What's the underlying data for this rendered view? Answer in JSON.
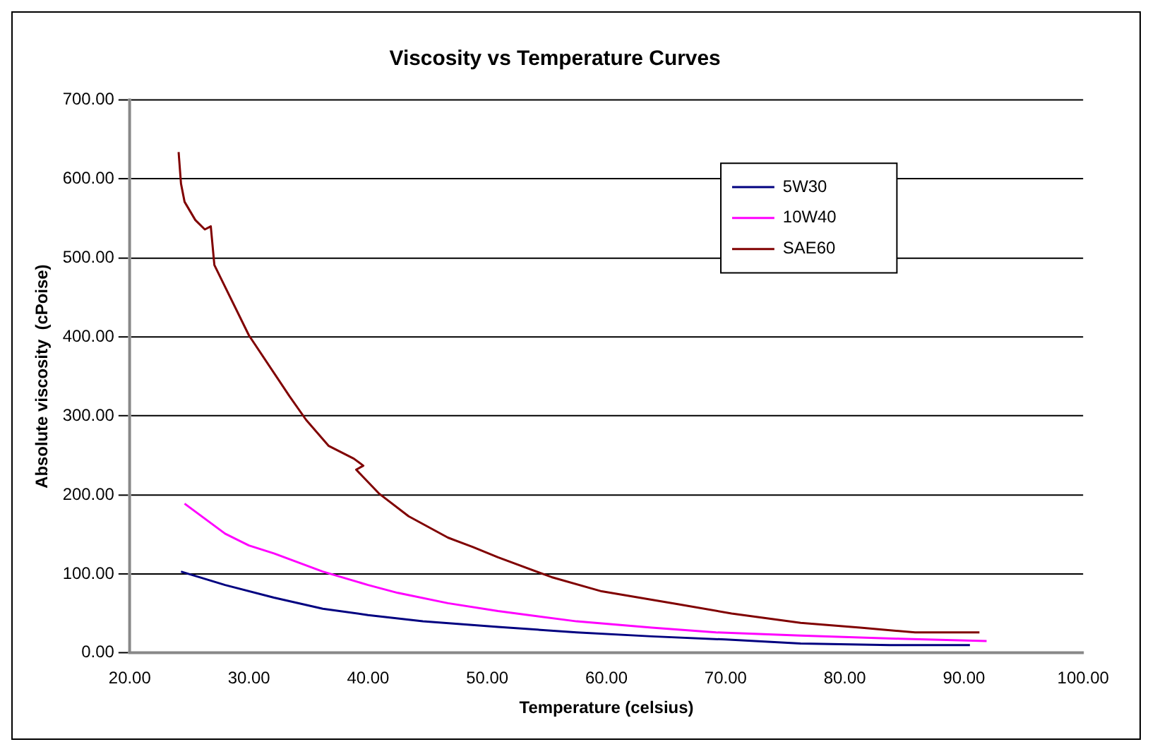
{
  "chart_data": {
    "type": "line",
    "title": "Viscosity vs Temperature Curves",
    "xlabel": "Temperature (celsius)",
    "ylabel": "Absolute viscosity  (cPoise)",
    "xlim": [
      20,
      100
    ],
    "ylim": [
      0,
      700
    ],
    "xticks": [
      {
        "value": 20,
        "label": "20.00"
      },
      {
        "value": 30,
        "label": "30.00"
      },
      {
        "value": 40,
        "label": "40.00"
      },
      {
        "value": 50,
        "label": "50.00"
      },
      {
        "value": 60,
        "label": "60.00"
      },
      {
        "value": 70,
        "label": "70.00"
      },
      {
        "value": 80,
        "label": "80.00"
      },
      {
        "value": 90,
        "label": "90.00"
      },
      {
        "value": 100,
        "label": "100.00"
      }
    ],
    "yticks": [
      {
        "value": 0,
        "label": "0.00"
      },
      {
        "value": 100,
        "label": "100.00"
      },
      {
        "value": 200,
        "label": "200.00"
      },
      {
        "value": 300,
        "label": "300.00"
      },
      {
        "value": 400,
        "label": "400.00"
      },
      {
        "value": 500,
        "label": "500.00"
      },
      {
        "value": 600,
        "label": "600.00"
      },
      {
        "value": 700,
        "label": "700.00"
      }
    ],
    "grid": "y",
    "legend": "top right",
    "marker": "none",
    "line_style": "solid",
    "series": [
      {
        "name": "5W30",
        "color": "#000080",
        "x": [
          24.3,
          28.0,
          32.1,
          36.2,
          40.0,
          44.6,
          50.9,
          57.5,
          63.8,
          70.0,
          76.3,
          83.8,
          90.5
        ],
        "values": [
          103,
          86,
          70,
          56,
          48,
          40,
          33,
          26,
          21,
          17,
          12,
          10,
          10
        ]
      },
      {
        "name": "10W40",
        "color": "#ff00ff",
        "x": [
          24.6,
          28.0,
          30.0,
          32.1,
          36.2,
          40.0,
          42.5,
          46.7,
          50.9,
          57.5,
          63.8,
          69.2,
          76.3,
          84.6,
          91.9
        ],
        "values": [
          189,
          151,
          136,
          126,
          103,
          86,
          76,
          63,
          53,
          40,
          32,
          26,
          22,
          18,
          15
        ]
      },
      {
        "name": "SAE60",
        "color": "#800000",
        "x": [
          24.1,
          24.3,
          24.6,
          25.5,
          26.3,
          26.8,
          27.1,
          30.0,
          33.4,
          34.8,
          36.7,
          38.8,
          39.6,
          39.0,
          40.9,
          43.4,
          46.7,
          48.8,
          50.9,
          55.4,
          59.6,
          65.9,
          70.5,
          76.3,
          81.3,
          85.9,
          91.3
        ],
        "values": [
          634,
          594,
          571,
          548,
          536,
          540,
          491,
          402,
          325,
          295,
          262,
          246,
          237,
          232,
          202,
          173,
          146,
          134,
          121,
          96,
          78,
          62,
          50,
          38,
          32,
          26,
          26
        ]
      }
    ]
  }
}
